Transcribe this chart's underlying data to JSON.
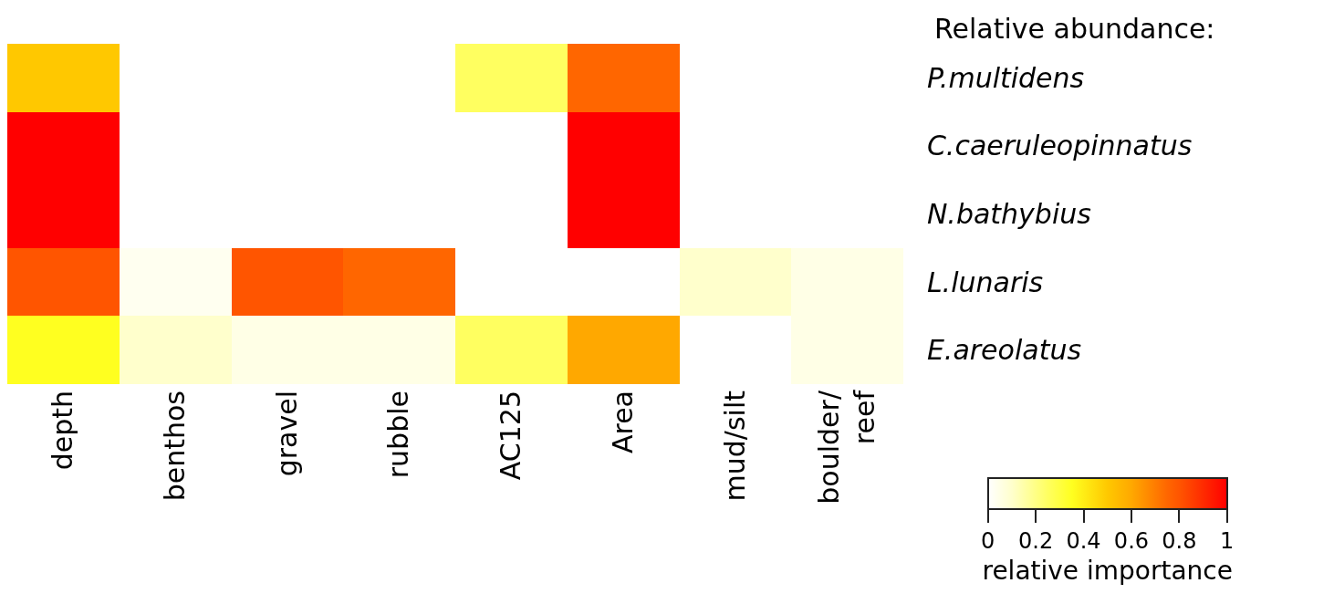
{
  "chart_data": {
    "type": "heatmap",
    "title": "Relative abundance:",
    "clabel": "relative importance",
    "categories": [
      "depth",
      "benthos",
      "gravel",
      "rubble",
      "AC125",
      "Area",
      "mud/silt",
      "boulder/\nreef"
    ],
    "y_categories": [
      "P.multidens",
      "C.caeruleopinnatus",
      "N.bathybius",
      "L.lunaris",
      "E.areolatus"
    ],
    "cells": [
      [
        0.5,
        null,
        null,
        null,
        0.25,
        0.75,
        null,
        null
      ],
      [
        1,
        null,
        null,
        null,
        null,
        1,
        null,
        null
      ],
      [
        1,
        null,
        null,
        null,
        null,
        1,
        null,
        null
      ],
      [
        0.8,
        0.03,
        0.8,
        0.75,
        null,
        null,
        0.1,
        0.05
      ],
      [
        0.35,
        0.1,
        0.05,
        0.05,
        0.25,
        0.6,
        null,
        0.05
      ]
    ],
    "clim": [
      0,
      1
    ],
    "cticks": [
      0,
      0.2,
      0.4,
      0.6,
      0.8,
      1
    ]
  }
}
